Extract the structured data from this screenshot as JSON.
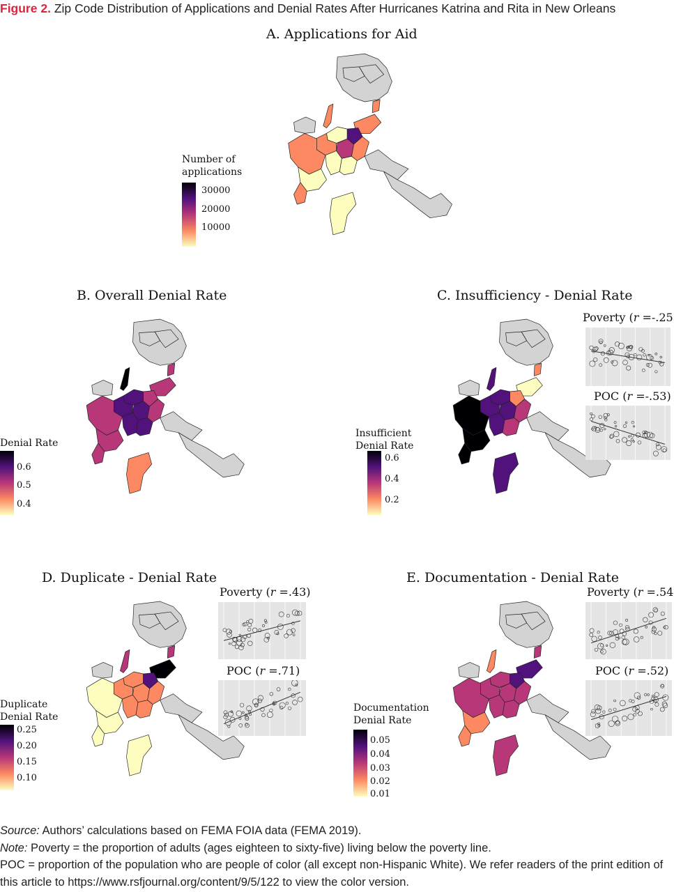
{
  "figure": {
    "label": "Figure 2.",
    "title": "Zip Code Distribution of Applications and Denial Rates After Hurricanes Katrina and Rita in New Orleans"
  },
  "colors": {
    "accent": "#d7263d",
    "map_gray": "#d3d3d3",
    "scale": [
      "#fcfdbf",
      "#fc8961",
      "#b73779",
      "#51127c",
      "#000004"
    ]
  },
  "panels": {
    "a": {
      "title": "A. Applications for Aid",
      "legend_title_1": "Number of",
      "legend_title_2": "applications",
      "ticks": [
        "30000",
        "20000",
        "10000"
      ]
    },
    "b": {
      "title": "B. Overall Denial Rate",
      "legend_title_1": "Denial Rate",
      "ticks": [
        "0.6",
        "0.5",
        "0.4"
      ]
    },
    "c": {
      "title": "C. Insufficiency - Denial Rate",
      "legend_title_1": "Insufficient",
      "legend_title_2": "Denial Rate",
      "ticks": [
        "0.6",
        "0.4",
        "0.2"
      ],
      "inset1": {
        "label": "Poverty (",
        "r": "r",
        "value": " =-.25)"
      },
      "inset2": {
        "label": "POC (",
        "r": "r",
        "value": " =-.53)"
      }
    },
    "d": {
      "title": "D. Duplicate - Denial Rate",
      "legend_title_1": "Duplicate",
      "legend_title_2": "Denial Rate",
      "ticks": [
        "0.25",
        "0.20",
        "0.15",
        "0.10"
      ],
      "inset1": {
        "label": "Poverty (",
        "r": "r",
        "value": " =.43)"
      },
      "inset2": {
        "label": "POC (",
        "r": "r",
        "value": " =.71)"
      }
    },
    "e": {
      "title": "E. Documentation - Denial Rate",
      "legend_title_1": "Documentation",
      "legend_title_2": "Denial Rate",
      "ticks": [
        "0.05",
        "0.04",
        "0.03",
        "0.02",
        "0.01"
      ],
      "inset1": {
        "label": "Poverty (",
        "r": "r",
        "value": " =.54)"
      },
      "inset2": {
        "label": "POC (",
        "r": "r",
        "value": " =.52)"
      }
    }
  },
  "notes": {
    "source_label": "Source:",
    "source_text": " Authors’ calculations based on FEMA FOIA data (FEMA 2019).",
    "note_label": "Note:",
    "note_text": " Poverty = the proportion of adults (ages eighteen to sixty-five) living below the poverty line.",
    "poc_text": "POC = proportion of the population who are people of color (all except non-Hispanic White). We refer readers of the print edition of this article to https://www.rsfjournal.org/content/9/5/122 to view the color version."
  }
}
